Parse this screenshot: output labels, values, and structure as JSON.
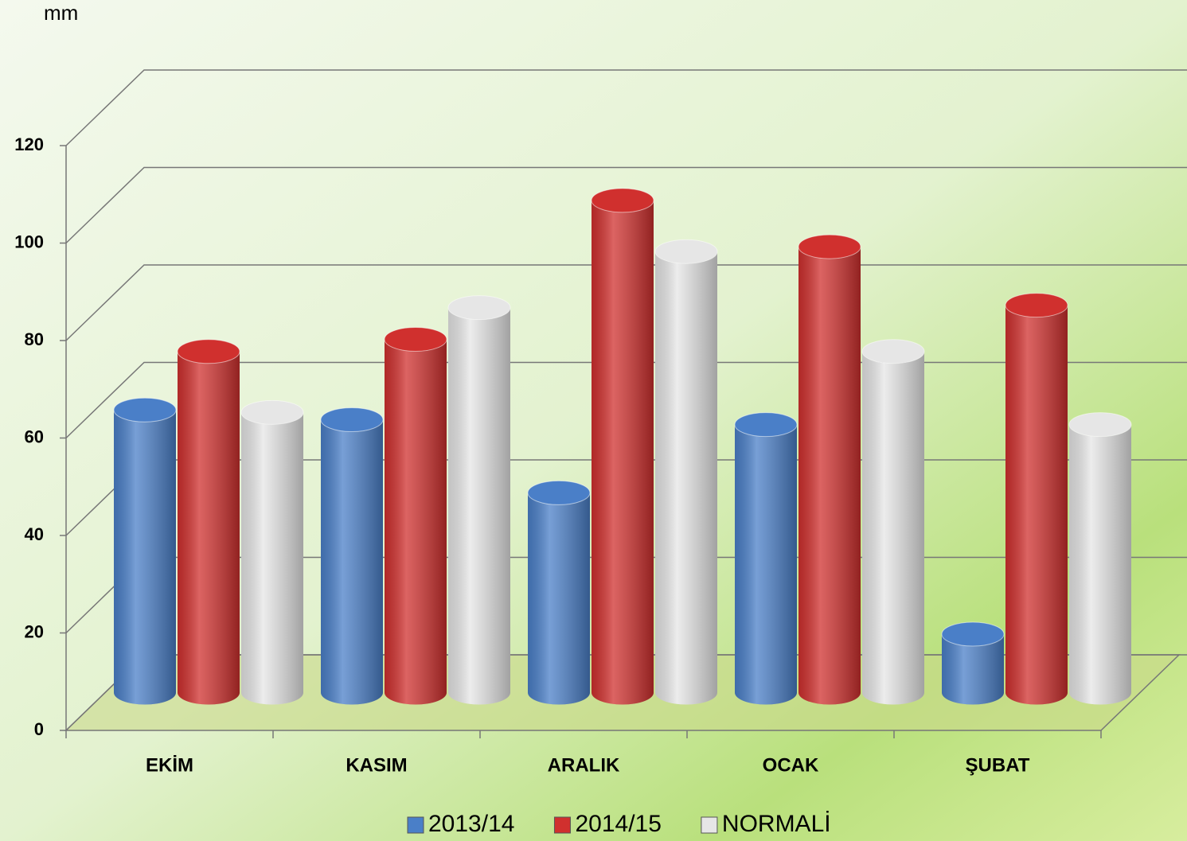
{
  "chart_data": {
    "type": "bar3d",
    "y_label": "mm",
    "categories": [
      "EKİM",
      "KASIM",
      "ARALIK",
      "OCAK",
      "ŞUBAT"
    ],
    "series": [
      {
        "name": "2013/14",
        "color": "#4a7fc8",
        "values": [
          58,
          56,
          41,
          55,
          12
        ]
      },
      {
        "name": "2014/15",
        "color": "#d0302e",
        "values": [
          70,
          72.5,
          101,
          91.5,
          79.5
        ]
      },
      {
        "name": "NORMALİ",
        "color": "#e6e6e6",
        "values": [
          57.5,
          79,
          90.5,
          70,
          55
        ]
      }
    ],
    "ylim": [
      0,
      120
    ],
    "yticks": [
      0,
      20,
      40,
      60,
      80,
      100,
      120
    ],
    "grid": true,
    "legend": "bottom"
  }
}
